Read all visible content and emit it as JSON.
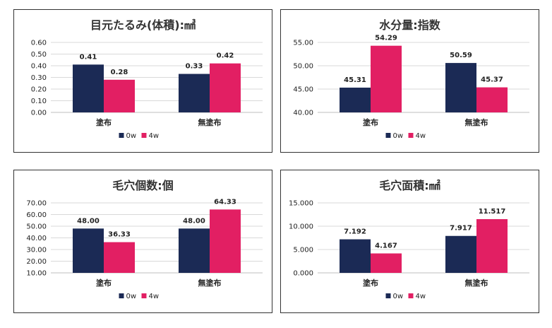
{
  "colors": {
    "0w": "#1b2a55",
    "4w": "#e21f63"
  },
  "chart_data": [
    {
      "type": "bar",
      "title": "目元たるみ(体積):㎣",
      "categories": [
        "塗布",
        "無塗布"
      ],
      "series": [
        {
          "name": "0w",
          "values": [
            0.41,
            0.33
          ],
          "labels": [
            "0.41",
            "0.33"
          ]
        },
        {
          "name": "4w",
          "values": [
            0.28,
            0.42
          ],
          "labels": [
            "0.28",
            "0.42"
          ]
        }
      ],
      "ylim": [
        0,
        0.6
      ],
      "yticks": [
        "0.00",
        "0.10",
        "0.20",
        "0.30",
        "0.40",
        "0.50",
        "0.60"
      ],
      "grid": true,
      "legend": "bottom"
    },
    {
      "type": "bar",
      "title": "水分量:指数",
      "categories": [
        "塗布",
        "無塗布"
      ],
      "series": [
        {
          "name": "0w",
          "values": [
            45.31,
            50.59
          ],
          "labels": [
            "45.31",
            "50.59"
          ]
        },
        {
          "name": "4w",
          "values": [
            54.29,
            45.37
          ],
          "labels": [
            "54.29",
            "45.37"
          ]
        }
      ],
      "ylim": [
        40,
        55
      ],
      "yticks": [
        "40.00",
        "45.00",
        "50.00",
        "55.00"
      ],
      "grid": true,
      "legend": "bottom"
    },
    {
      "type": "bar",
      "title": "毛穴個数:個",
      "categories": [
        "塗布",
        "無塗布"
      ],
      "series": [
        {
          "name": "0w",
          "values": [
            48.0,
            48.0
          ],
          "labels": [
            "48.00",
            "48.00"
          ]
        },
        {
          "name": "4w",
          "values": [
            36.33,
            64.33
          ],
          "labels": [
            "36.33",
            "64.33"
          ]
        }
      ],
      "ylim": [
        10,
        70
      ],
      "yticks": [
        "10.00",
        "20.00",
        "30.00",
        "40.00",
        "50.00",
        "60.00",
        "70.00"
      ],
      "grid": true,
      "legend": "bottom"
    },
    {
      "type": "bar",
      "title": "毛穴面積:㎟",
      "categories": [
        "塗布",
        "無塗布"
      ],
      "series": [
        {
          "name": "0w",
          "values": [
            7.192,
            7.917
          ],
          "labels": [
            "7.192",
            "7.917"
          ]
        },
        {
          "name": "4w",
          "values": [
            4.167,
            11.517
          ],
          "labels": [
            "4.167",
            "11.517"
          ]
        }
      ],
      "ylim": [
        0,
        15
      ],
      "yticks": [
        "0.000",
        "5.000",
        "10.000",
        "15.000"
      ],
      "grid": true,
      "legend": "bottom"
    }
  ]
}
